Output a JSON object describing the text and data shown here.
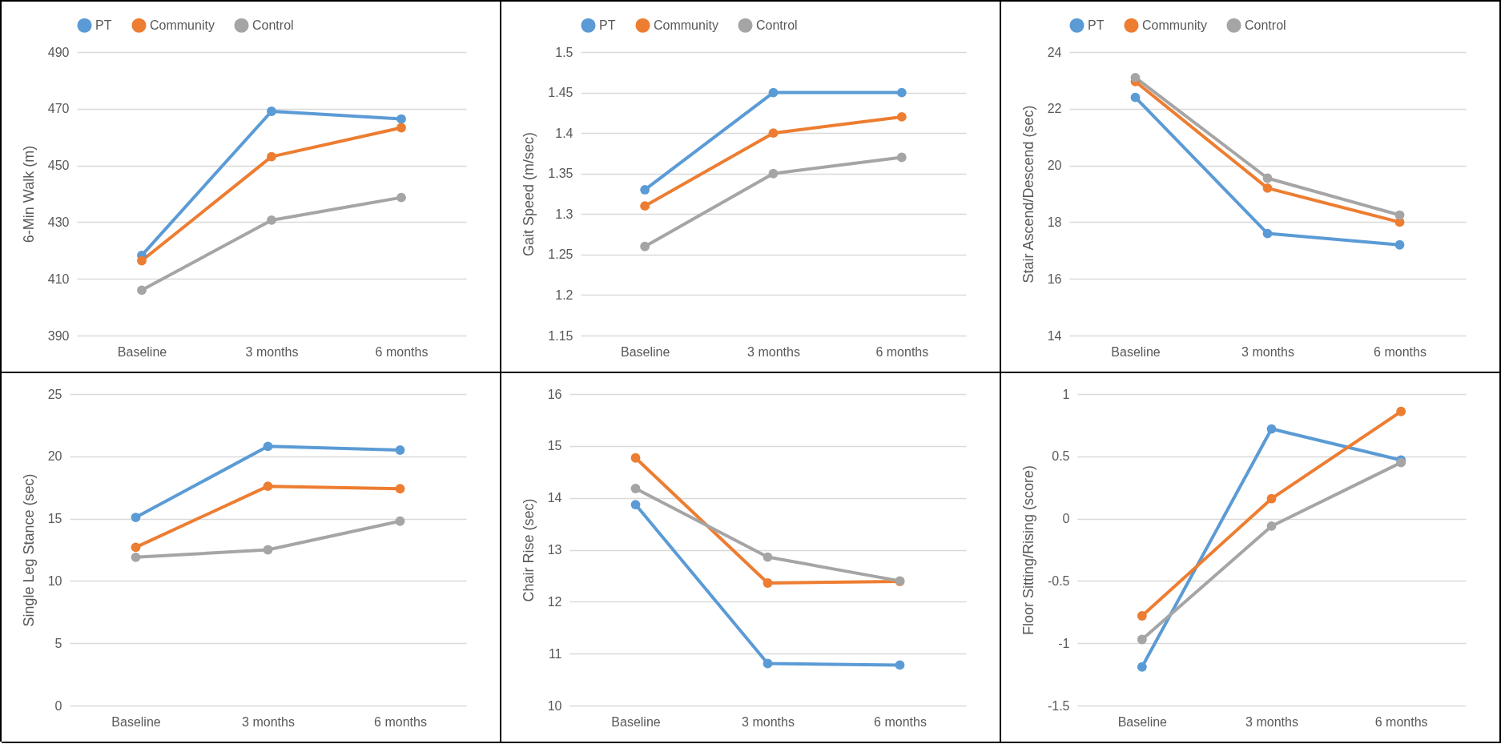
{
  "chart_data": [
    {
      "type": "line",
      "ylabel": "6-Min Walk (m)",
      "categories": [
        "Baseline",
        "3 months",
        "6 months"
      ],
      "ylim": [
        390,
        490
      ],
      "yticks": [
        390,
        410,
        430,
        450,
        470,
        490
      ],
      "grid": "y",
      "legend": "top",
      "marker": "circle",
      "line_style": "solid",
      "series": [
        {
          "name": "PT",
          "color": "#5b9bd5",
          "values": [
            418.3,
            469.1,
            466.4
          ]
        },
        {
          "name": "Community",
          "color": "#ed7d31",
          "values": [
            416.4,
            453.1,
            463.3
          ]
        },
        {
          "name": "Control",
          "color": "#a5a5a5",
          "values": [
            406,
            430.7,
            438.7
          ]
        }
      ]
    },
    {
      "type": "line",
      "ylabel": "Gait Speed  (m/sec)",
      "categories": [
        "Baseline",
        "3 months",
        "6 months"
      ],
      "ylim": [
        1.15,
        1.5
      ],
      "yticks": [
        1.15,
        1.2,
        1.25,
        1.3,
        1.35,
        1.4,
        1.45,
        1.5
      ],
      "grid": "y",
      "legend": "top",
      "marker": "circle",
      "line_style": "solid",
      "series": [
        {
          "name": "PT",
          "color": "#5b9bd5",
          "values": [
            1.33,
            1.45,
            1.45
          ]
        },
        {
          "name": "Community",
          "color": "#ed7d31",
          "values": [
            1.31,
            1.4,
            1.42
          ]
        },
        {
          "name": "Control",
          "color": "#a5a5a5",
          "values": [
            1.26,
            1.35,
            1.37
          ]
        }
      ]
    },
    {
      "type": "line",
      "ylabel": "Stair Ascend/Descend (sec)",
      "categories": [
        "Baseline",
        "3 months",
        "6 months"
      ],
      "ylim": [
        14,
        24
      ],
      "yticks": [
        14,
        16,
        18,
        20,
        22,
        24
      ],
      "grid": "y",
      "legend": "top",
      "marker": "circle",
      "line_style": "solid",
      "series": [
        {
          "name": "PT",
          "color": "#5b9bd5",
          "values": [
            22.4,
            17.6,
            17.2
          ]
        },
        {
          "name": "Community",
          "color": "#ed7d31",
          "values": [
            22.96,
            19.2,
            18.0
          ]
        },
        {
          "name": "Control",
          "color": "#a5a5a5",
          "values": [
            23.1,
            19.55,
            18.25
          ]
        }
      ]
    },
    {
      "type": "line",
      "ylabel": "Single Leg Stance (sec)",
      "categories": [
        "Baseline",
        "3 months",
        "6 months"
      ],
      "ylim": [
        0,
        25
      ],
      "yticks": [
        0,
        5,
        10,
        15,
        20,
        25
      ],
      "grid": "y",
      "marker": "circle",
      "line_style": "solid",
      "series": [
        {
          "color": "#5b9bd5",
          "values": [
            15.1,
            20.8,
            20.5
          ]
        },
        {
          "color": "#ed7d31",
          "values": [
            12.7,
            17.6,
            17.4
          ]
        },
        {
          "color": "#a5a5a5",
          "values": [
            11.9,
            12.5,
            14.8
          ]
        }
      ]
    },
    {
      "type": "line",
      "ylabel": "Chair Rise (sec)",
      "categories": [
        "Baseline",
        "3 months",
        "6 months"
      ],
      "ylim": [
        10,
        16
      ],
      "yticks": [
        10,
        11,
        12,
        13,
        14,
        15,
        16
      ],
      "grid": "y",
      "marker": "circle",
      "line_style": "solid",
      "series": [
        {
          "color": "#5b9bd5",
          "values": [
            13.87,
            10.81,
            10.78
          ]
        },
        {
          "color": "#ed7d31",
          "values": [
            14.77,
            12.36,
            12.39
          ]
        },
        {
          "color": "#a5a5a5",
          "values": [
            14.18,
            12.86,
            12.4
          ]
        }
      ]
    },
    {
      "type": "line",
      "ylabel": "Floor Sitting/Rising (score)",
      "categories": [
        "Baseline",
        "3 months",
        "6 months"
      ],
      "ylim": [
        -1.5,
        1
      ],
      "yticks": [
        -1.5,
        -1,
        -0.5,
        0,
        0.5,
        1
      ],
      "grid": "y",
      "marker": "circle",
      "line_style": "solid",
      "series": [
        {
          "color": "#5b9bd5",
          "values": [
            -1.19,
            0.72,
            0.47
          ]
        },
        {
          "color": "#ed7d31",
          "values": [
            -0.78,
            0.16,
            0.86
          ]
        },
        {
          "color": "#a5a5a5",
          "values": [
            -0.97,
            -0.06,
            0.45
          ]
        }
      ]
    }
  ]
}
